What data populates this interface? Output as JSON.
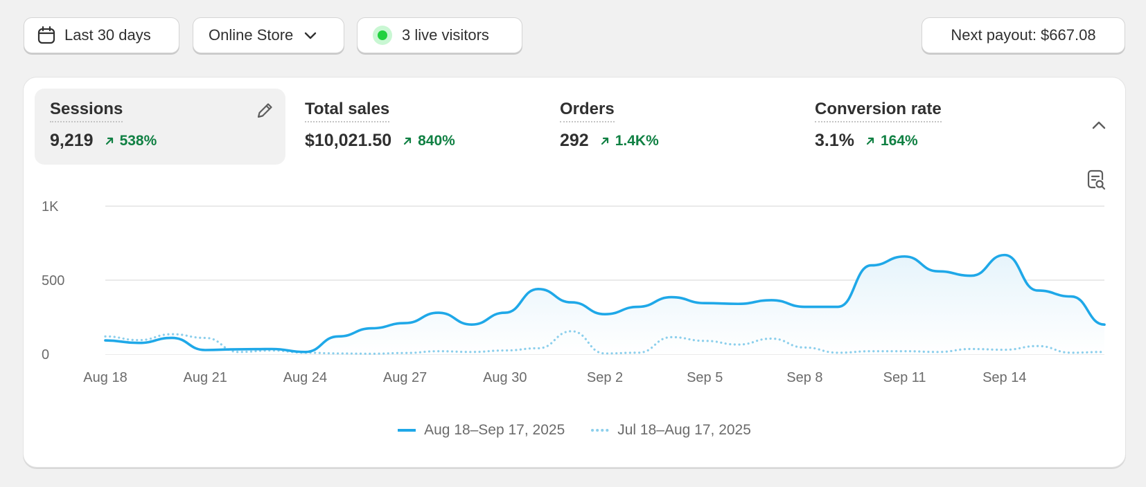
{
  "toolbar": {
    "date_range": {
      "label": "Last 30 days",
      "icon": "calendar-icon"
    },
    "channel": {
      "label": "Online Store",
      "icon": "chevron-down-icon"
    },
    "live": {
      "label": "3 live visitors",
      "icon": "live-dot-icon"
    },
    "payout": {
      "label": "Next payout: $667.08"
    }
  },
  "metrics": [
    {
      "label": "Sessions",
      "value": "9,219",
      "change": "538%",
      "active": true
    },
    {
      "label": "Total sales",
      "value": "$10,021.50",
      "change": "840%"
    },
    {
      "label": "Orders",
      "value": "292",
      "change": "1.4K%"
    },
    {
      "label": "Conversion rate",
      "value": "3.1%",
      "change": "164%"
    }
  ],
  "colors": {
    "primary_series": "#1fa8e8",
    "comparison_series": "#8ccfec",
    "positive_change": "#108043",
    "live_dot": "#22d13f"
  },
  "chart_data": {
    "type": "line",
    "ylim": [
      0,
      1000
    ],
    "y_ticks": [
      "0",
      "500",
      "1K"
    ],
    "y_tick_values": [
      0,
      500,
      1000
    ],
    "x_tick_labels": [
      "Aug 18",
      "Aug 21",
      "Aug 24",
      "Aug 27",
      "Aug 30",
      "Sep 2",
      "Sep 5",
      "Sep 8",
      "Sep 11",
      "Sep 14"
    ],
    "grid": true,
    "legend_position": "bottom",
    "series": [
      {
        "name": "Aug 18–Sep 17, 2025",
        "style": "solid",
        "values": [
          93,
          76,
          110,
          28,
          33,
          35,
          15,
          120,
          175,
          210,
          280,
          200,
          280,
          440,
          350,
          270,
          320,
          385,
          345,
          340,
          365,
          320,
          320,
          600,
          660,
          560,
          530,
          670,
          430,
          390,
          200
        ]
      },
      {
        "name": "Jul 18–Aug 17, 2025",
        "style": "dotted",
        "values": [
          120,
          95,
          135,
          110,
          15,
          25,
          10,
          5,
          3,
          8,
          20,
          15,
          25,
          40,
          155,
          5,
          10,
          115,
          90,
          65,
          105,
          45,
          10,
          20,
          20,
          15,
          35,
          30,
          55,
          10,
          15
        ]
      }
    ]
  }
}
